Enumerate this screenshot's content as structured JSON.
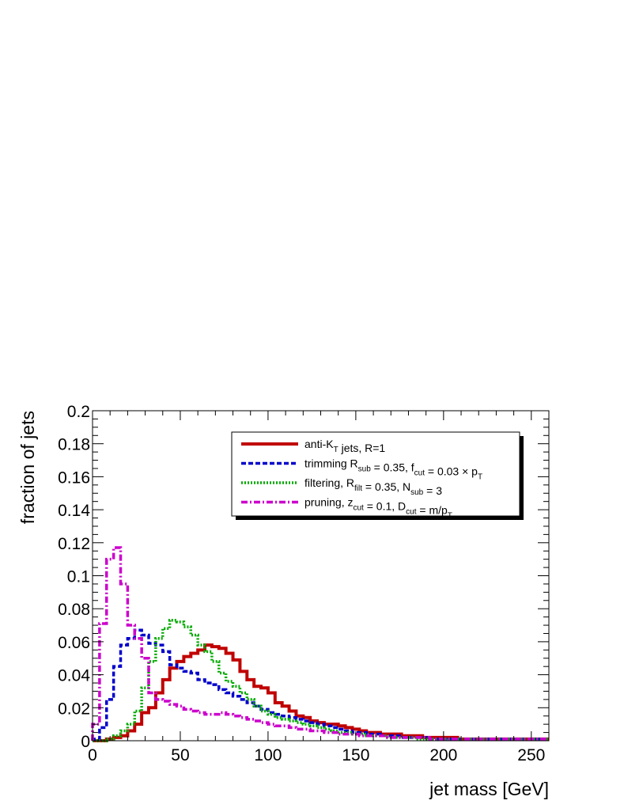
{
  "chart_data": {
    "type": "line",
    "step": true,
    "title": "",
    "xlabel": "jet mass [GeV]",
    "ylabel": "fraction of jets",
    "xlim": [
      0,
      260
    ],
    "ylim": [
      0,
      0.2
    ],
    "bin_width": 4,
    "x_ticks": [
      0,
      50,
      100,
      150,
      200,
      250
    ],
    "x_tick_labels": [
      "0",
      "50",
      "100",
      "150",
      "200",
      "250"
    ],
    "y_ticks": [
      0,
      0.02,
      0.04,
      0.06,
      0.08,
      0.1,
      0.12,
      0.14,
      0.16,
      0.18,
      0.2
    ],
    "y_tick_labels": [
      "0",
      "0.02",
      "0.04",
      "0.06",
      "0.08",
      "0.1",
      "0.12",
      "0.14",
      "0.16",
      "0.18",
      "0.2"
    ],
    "grid": false,
    "legend_position": "top-right",
    "series": [
      {
        "name": "anti-K_T jets, R=1",
        "legend_main": "anti-K",
        "legend_sub": "T",
        "legend_rest": " jets, R=1",
        "color": "#c00000",
        "dash": "solid",
        "values": [
          0,
          0,
          0.001,
          0.002,
          0.003,
          0.006,
          0.01,
          0.017,
          0.02,
          0.029,
          0.037,
          0.044,
          0.048,
          0.051,
          0.053,
          0.055,
          0.058,
          0.057,
          0.056,
          0.053,
          0.049,
          0.042,
          0.037,
          0.033,
          0.032,
          0.029,
          0.023,
          0.021,
          0.018,
          0.015,
          0.014,
          0.012,
          0.011,
          0.01,
          0.01,
          0.009,
          0.008,
          0.007,
          0.006,
          0.005,
          0.005,
          0.004,
          0.004,
          0.004,
          0.003,
          0.003,
          0.003,
          0.002,
          0.002,
          0.002,
          0.002,
          0.002,
          0.001,
          0.001,
          0.001,
          0.001,
          0.001,
          0.001,
          0.001,
          0.001,
          0.001,
          0.001,
          0.001,
          0.001,
          0.001
        ]
      },
      {
        "name": "trimming R_sub = 0.35, f_cut = 0.03 × p_T",
        "legend_parts": [
          [
            "trimming R",
            ""
          ],
          [
            "sub",
            "sub"
          ],
          [
            " = 0.35, f",
            ""
          ],
          [
            "cut",
            "sub"
          ],
          [
            " = 0.03 × p",
            ""
          ],
          [
            "T",
            "sub"
          ]
        ],
        "color": "#0000cc",
        "dash": "dashed",
        "values": [
          0.001,
          0.008,
          0.025,
          0.045,
          0.058,
          0.062,
          0.067,
          0.064,
          0.059,
          0.058,
          0.054,
          0.046,
          0.044,
          0.042,
          0.041,
          0.037,
          0.035,
          0.034,
          0.031,
          0.029,
          0.027,
          0.025,
          0.023,
          0.021,
          0.019,
          0.017,
          0.016,
          0.015,
          0.014,
          0.013,
          0.012,
          0.011,
          0.01,
          0.009,
          0.008,
          0.007,
          0.006,
          0.005,
          0.005,
          0.004,
          0.004,
          0.003,
          0.003,
          0.003,
          0.002,
          0.002,
          0.002,
          0.002,
          0.001,
          0.001,
          0.001,
          0.001,
          0.001,
          0.001,
          0.001,
          0.001,
          0.001,
          0.001,
          0.001,
          0.001,
          0.001,
          0.001,
          0.001,
          0.001,
          0.001
        ]
      },
      {
        "name": "filtering, R_filt = 0.35, N_sub = 3",
        "legend_parts": [
          [
            "filtering, R",
            ""
          ],
          [
            "filt",
            "sub"
          ],
          [
            " = 0.35, N",
            ""
          ],
          [
            "sub",
            "sub"
          ],
          [
            " = 3",
            ""
          ]
        ],
        "color": "#00aa00",
        "dash": "dotted",
        "values": [
          0,
          0,
          0.001,
          0.003,
          0.006,
          0.01,
          0.018,
          0.032,
          0.048,
          0.062,
          0.068,
          0.073,
          0.072,
          0.069,
          0.064,
          0.058,
          0.054,
          0.048,
          0.041,
          0.036,
          0.033,
          0.029,
          0.025,
          0.021,
          0.018,
          0.016,
          0.014,
          0.013,
          0.012,
          0.011,
          0.01,
          0.009,
          0.008,
          0.007,
          0.006,
          0.005,
          0.005,
          0.004,
          0.004,
          0.003,
          0.003,
          0.003,
          0.002,
          0.002,
          0.002,
          0.002,
          0.001,
          0.001,
          0.001,
          0.001,
          0.001,
          0.001,
          0.001,
          0.001,
          0.001,
          0.001,
          0.001,
          0.001,
          0.001,
          0.001,
          0.001,
          0.001,
          0.001,
          0.001,
          0.001
        ]
      },
      {
        "name": "pruning, z_cut = 0.1, D_cut = m/p_T",
        "legend_parts": [
          [
            "pruning, z",
            ""
          ],
          [
            "cut",
            "sub"
          ],
          [
            " = 0.1, D",
            ""
          ],
          [
            "cut",
            "sub"
          ],
          [
            " = m/p",
            ""
          ],
          [
            "T",
            "sub"
          ]
        ],
        "color": "#cc00cc",
        "dash": "dashdot",
        "values": [
          0.01,
          0.071,
          0.11,
          0.117,
          0.095,
          0.07,
          0.062,
          0.05,
          0.029,
          0.025,
          0.024,
          0.022,
          0.021,
          0.019,
          0.018,
          0.017,
          0.016,
          0.016,
          0.017,
          0.016,
          0.015,
          0.014,
          0.013,
          0.012,
          0.011,
          0.01,
          0.009,
          0.009,
          0.008,
          0.007,
          0.007,
          0.006,
          0.006,
          0.005,
          0.005,
          0.004,
          0.004,
          0.004,
          0.003,
          0.003,
          0.003,
          0.003,
          0.002,
          0.002,
          0.002,
          0.002,
          0.002,
          0.002,
          0.001,
          0.001,
          0.001,
          0.001,
          0.001,
          0.001,
          0.001,
          0.001,
          0.001,
          0.001,
          0.001,
          0.001,
          0.001,
          0.001,
          0.001,
          0.001,
          0.001
        ]
      }
    ]
  }
}
